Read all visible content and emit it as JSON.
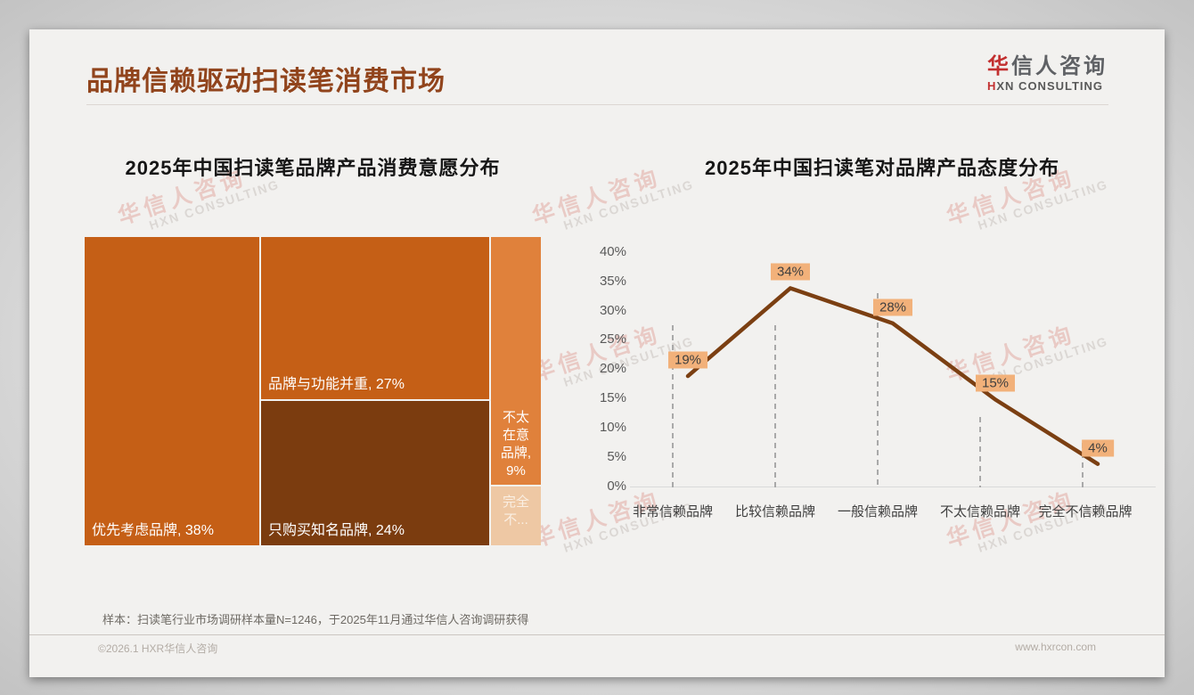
{
  "page": {
    "title": "品牌信赖驱动扫读笔消费市场",
    "logo": {
      "cn_first": "华",
      "cn_rest": "信人咨询",
      "en_first": "H",
      "en_rest": "XN CONSULTING"
    },
    "watermark": {
      "cn": "华信人咨询",
      "en": "HXN CONSULTING"
    }
  },
  "footer": {
    "note": "样本：扫读笔行业市场调研样本量N=1246，于2025年11月通过华信人咨询调研获得",
    "copyright": "©2026.1 HXR华信人咨询",
    "website": "www.hxrcon.com"
  },
  "chart_data": [
    {
      "type": "treemap",
      "title": "2025年中国扫读笔品牌产品消费意愿分布",
      "items": [
        {
          "label": "优先考虑品牌",
          "value": 38,
          "display": "优先考虑品牌, 38%",
          "color": "#C55F16"
        },
        {
          "label": "品牌与功能并重",
          "value": 27,
          "display": "品牌与功能并重, 27%",
          "color": "#C55F16"
        },
        {
          "label": "只购买知名品牌",
          "value": 24,
          "display": "只购买知名品牌, 24%",
          "color": "#7B3C0F"
        },
        {
          "label": "不太在意品牌",
          "value": 9,
          "display": "不太在意品牌, 9%",
          "lines": [
            "不太",
            "在意",
            "品牌,",
            "9%"
          ],
          "color": "#E0813B"
        },
        {
          "label": "完全不在意品牌(截断显示)",
          "value": 2,
          "display": "完全不...",
          "lines": [
            "完全",
            "不..."
          ],
          "color": "#EEC8A4"
        }
      ]
    },
    {
      "type": "line",
      "title": "2025年中国扫读笔对品牌产品态度分布",
      "categories": [
        "非常信赖品牌",
        "比较信赖品牌",
        "一般信赖品牌",
        "不太信赖品牌",
        "完全不信赖品牌"
      ],
      "values": [
        19,
        34,
        28,
        15,
        4
      ],
      "labels": [
        "19%",
        "34%",
        "28%",
        "15%",
        "4%"
      ],
      "ylim": [
        0,
        40
      ],
      "yticks": [
        "40%",
        "35%",
        "30%",
        "25%",
        "20%",
        "15%",
        "10%",
        "5%",
        "0%"
      ],
      "grid": "dashed vertical drop lines per category",
      "legend": "none",
      "line_color": "#7B3F12",
      "label_bg": "#F2B17A"
    }
  ]
}
